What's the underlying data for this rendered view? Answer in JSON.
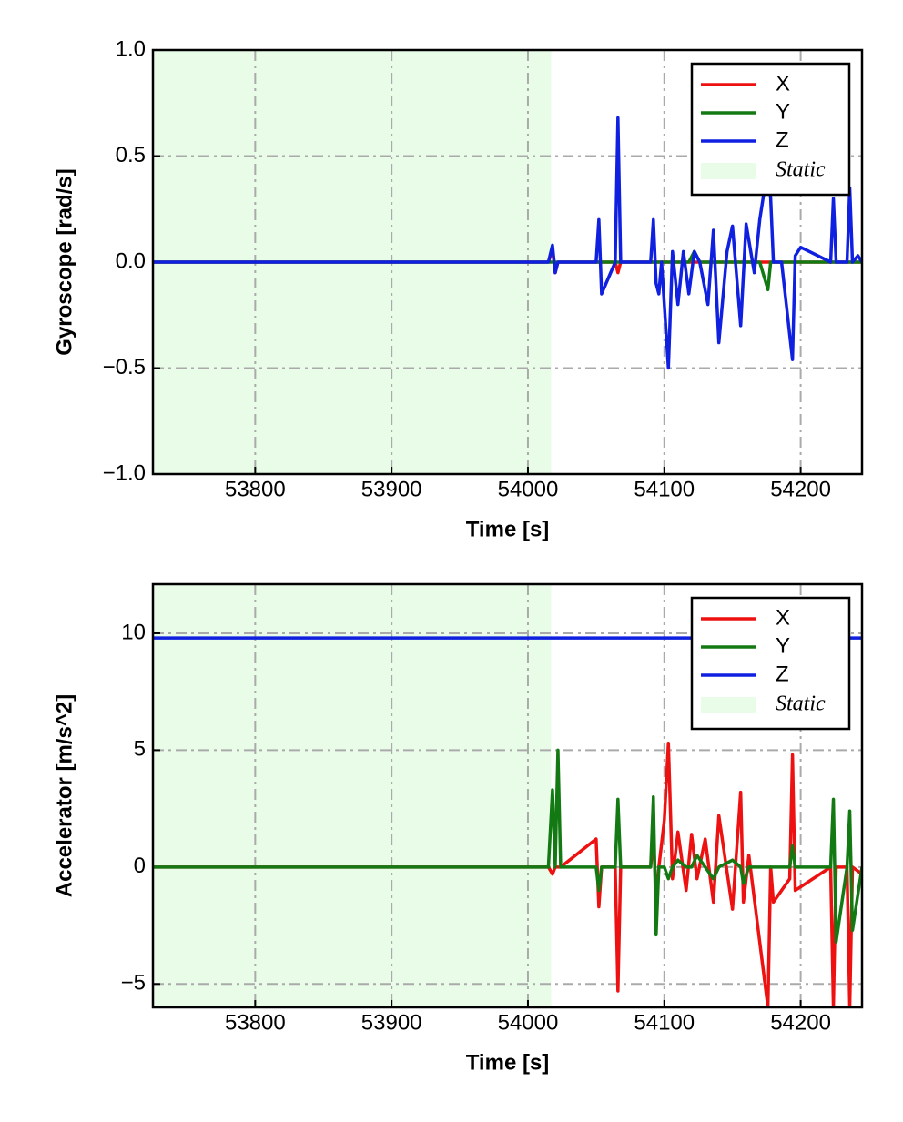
{
  "chart_data": [
    {
      "type": "line",
      "xlabel": "Time [s]",
      "ylabel": "Gyroscope [rad/s]",
      "xlim": [
        53725,
        54245
      ],
      "ylim": [
        -1,
        1
      ],
      "xticks": [
        53800,
        53900,
        54000,
        54100,
        54200
      ],
      "yticks": [
        {
          "value": -1,
          "label": "−1.0"
        },
        {
          "value": -0.5,
          "label": "−0.5"
        },
        {
          "value": 0,
          "label": "0.0"
        },
        0.5,
        {
          "value": 1,
          "label": "1.0"
        }
      ],
      "grid": true,
      "legend": "upper right",
      "static_region": {
        "label": "Static",
        "range": [
          53725,
          54017
        ],
        "color": "#e8fce8"
      },
      "x": [
        53725,
        54015,
        54018,
        54020,
        54022,
        54050,
        54052,
        54054,
        54064,
        54066,
        54068,
        54090,
        54092,
        54094,
        54096,
        54098,
        54103,
        54106,
        54110,
        54114,
        54118,
        54122,
        54126,
        54132,
        54136,
        54140,
        54146,
        54150,
        54156,
        54160,
        54166,
        54170,
        54176,
        54178,
        54180,
        54186,
        54194,
        54196,
        54200,
        54222,
        54224,
        54226,
        54234,
        54236,
        54238,
        54242,
        54245
      ],
      "series": [
        {
          "name": "X",
          "color": "#ee1111",
          "values": [
            0,
            0,
            0.06,
            -0.05,
            0,
            0,
            0,
            0,
            0,
            -0.05,
            0,
            0,
            0,
            0,
            0,
            0,
            0,
            0,
            0,
            0,
            0,
            0,
            0,
            0,
            0,
            0,
            0,
            0,
            0,
            0,
            0,
            0,
            0,
            0,
            0,
            0,
            0,
            0,
            0,
            0,
            0,
            0,
            0,
            0,
            0,
            0,
            0
          ]
        },
        {
          "name": "Y",
          "color": "#137a13",
          "values": [
            0,
            0,
            0,
            0,
            0,
            0,
            0,
            0,
            0,
            0,
            0,
            0,
            0,
            0,
            0,
            0,
            0,
            0,
            0,
            0,
            0,
            0.05,
            0,
            0,
            0,
            0,
            0,
            0,
            0,
            0,
            0,
            0,
            -0.13,
            0,
            0,
            0,
            0,
            0,
            0,
            0,
            0,
            0,
            0,
            0,
            0,
            0,
            0
          ]
        },
        {
          "name": "Z",
          "color": "#1020e0",
          "values": [
            0,
            0,
            0.08,
            -0.05,
            0,
            0,
            0.2,
            -0.15,
            0,
            0.68,
            0,
            0,
            0.2,
            -0.1,
            -0.15,
            0,
            -0.5,
            0.05,
            -0.2,
            0.05,
            -0.15,
            0.05,
            0,
            -0.2,
            0.15,
            -0.38,
            0.05,
            0.17,
            -0.3,
            0.18,
            -0.05,
            0.2,
            0.45,
            0.3,
            0,
            0,
            -0.46,
            0.03,
            0.07,
            0,
            0.3,
            0,
            0,
            0.35,
            0,
            0.03,
            0
          ]
        }
      ]
    },
    {
      "type": "line",
      "xlabel": "Time [s]",
      "ylabel": "Accelerator [m/s^2]",
      "xlim": [
        53725,
        54245
      ],
      "ylim": [
        -6,
        12.1
      ],
      "xticks": [
        53800,
        53900,
        54000,
        54100,
        54200
      ],
      "yticks": [
        {
          "value": -5,
          "label": "−5"
        },
        0,
        5,
        10
      ],
      "grid": true,
      "legend": "upper right",
      "static_region": {
        "label": "Static",
        "range": [
          53725,
          54017
        ],
        "color": "#e8fce8"
      },
      "x": [
        53725,
        54015,
        54018,
        54020,
        54022,
        54024,
        54050,
        54052,
        54054,
        54064,
        54066,
        54068,
        54090,
        54092,
        54094,
        54096,
        54100,
        54103,
        54106,
        54110,
        54116,
        54120,
        54124,
        54130,
        54136,
        54140,
        54150,
        54156,
        54158,
        54162,
        54176,
        54178,
        54180,
        54192,
        54194,
        54196,
        54222,
        54224,
        54226,
        54234,
        54236,
        54238,
        54245
      ],
      "series": [
        {
          "name": "X",
          "color": "#ee1111",
          "values": [
            0,
            0,
            -0.3,
            0,
            0,
            0,
            1.2,
            -1.7,
            0,
            0,
            -5.3,
            0,
            0,
            1.5,
            -1.5,
            0,
            2.0,
            5.3,
            -0.5,
            1.5,
            -1.0,
            1.4,
            -0.5,
            1.2,
            -1.5,
            2.2,
            -1.8,
            3.2,
            -1.5,
            0.5,
            -6,
            0,
            -1.5,
            -0.5,
            4.8,
            -1,
            0,
            -6,
            0,
            0,
            -6,
            0,
            -0.3
          ]
        },
        {
          "name": "Y",
          "color": "#137a13",
          "values": [
            0,
            0,
            3.3,
            0,
            5.0,
            0,
            0,
            -1.0,
            0,
            0,
            2.9,
            0,
            0,
            3.0,
            -2.9,
            0,
            0,
            -0.5,
            0,
            0.3,
            0,
            0,
            0.5,
            0,
            -0.5,
            0,
            0.3,
            0,
            -0.7,
            0,
            0,
            0,
            0,
            0,
            0.9,
            0,
            0,
            2.9,
            -3.2,
            0,
            2.4,
            -2.7,
            0
          ]
        },
        {
          "name": "Z",
          "color": "#1020e0",
          "values": [
            9.8,
            9.8,
            9.8,
            9.8,
            9.8,
            9.8,
            9.8,
            9.8,
            9.8,
            9.8,
            9.8,
            9.8,
            9.8,
            9.8,
            9.8,
            9.8,
            9.8,
            9.8,
            9.8,
            9.8,
            9.8,
            9.8,
            9.8,
            9.8,
            9.8,
            9.8,
            9.8,
            9.8,
            9.8,
            9.8,
            9.8,
            9.8,
            9.8,
            9.8,
            9.8,
            9.8,
            9.8,
            9.8,
            9.8,
            9.8,
            9.8,
            9.8,
            9.8
          ]
        }
      ]
    }
  ]
}
